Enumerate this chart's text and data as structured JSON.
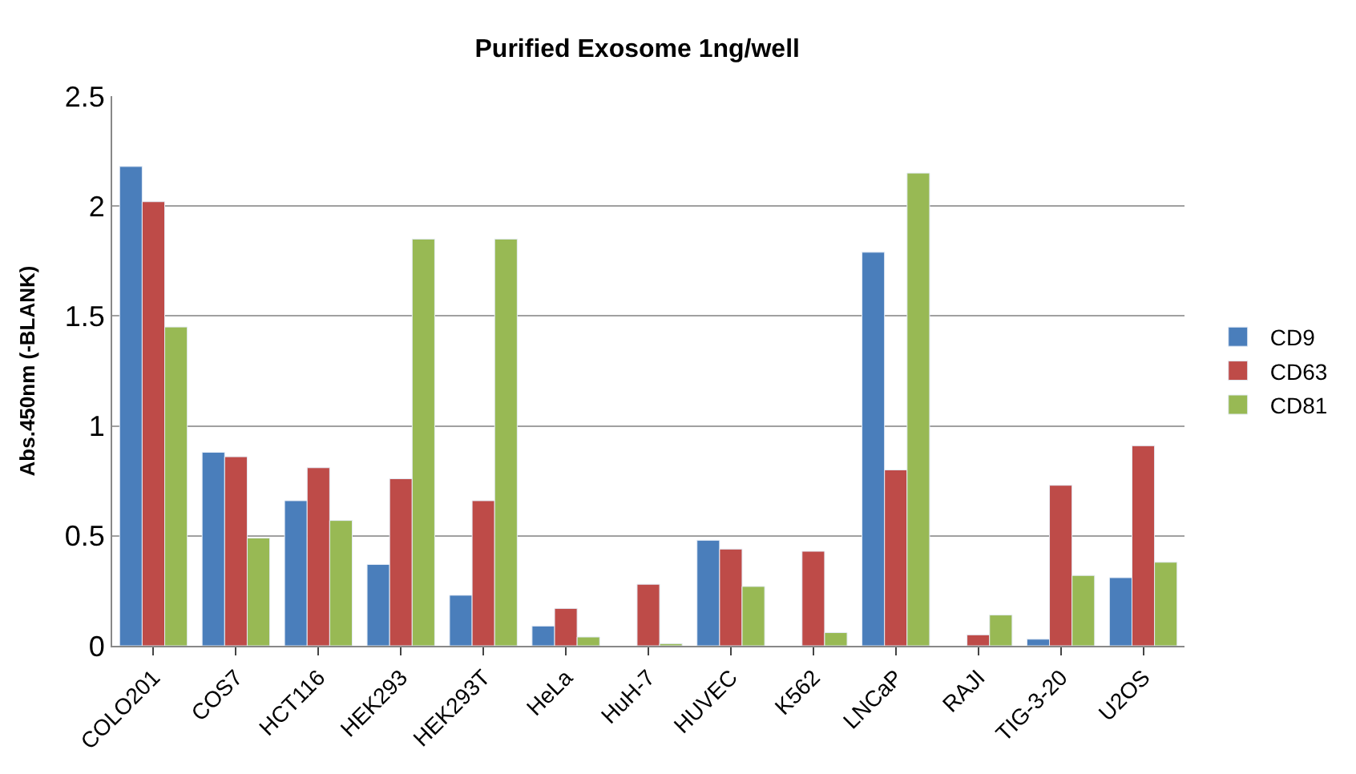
{
  "chart_data": {
    "type": "bar",
    "title": "Purified Exosome 1ng/well",
    "ylabel": "Abs.450nm (-BLANK)",
    "categories": [
      "COLO201",
      "COS7",
      "HCT116",
      "HEK293",
      "HEK293T",
      "HeLa",
      "HuH-7",
      "HUVEC",
      "K562",
      "LNCaP",
      "RAJI",
      "TIG-3-20",
      "U2OS"
    ],
    "series": [
      {
        "name": "CD9",
        "color": "#4a7ebb",
        "values": [
          2.18,
          0.88,
          0.66,
          0.37,
          0.23,
          0.09,
          null,
          0.48,
          null,
          1.79,
          null,
          0.03,
          0.31
        ]
      },
      {
        "name": "CD63",
        "color": "#be4b48",
        "values": [
          2.02,
          0.86,
          0.81,
          0.76,
          0.66,
          0.17,
          0.28,
          0.44,
          0.43,
          0.8,
          0.05,
          0.73,
          0.91
        ]
      },
      {
        "name": "CD81",
        "color": "#98b954",
        "values": [
          1.45,
          0.49,
          0.57,
          1.85,
          1.85,
          0.04,
          0.01,
          0.27,
          0.06,
          2.15,
          0.14,
          0.32,
          0.38
        ]
      }
    ],
    "ylim": [
      0,
      2.5
    ],
    "yticks": [
      0,
      0.5,
      1,
      1.5,
      2,
      2.5
    ],
    "grid": "y",
    "legend": "right"
  }
}
